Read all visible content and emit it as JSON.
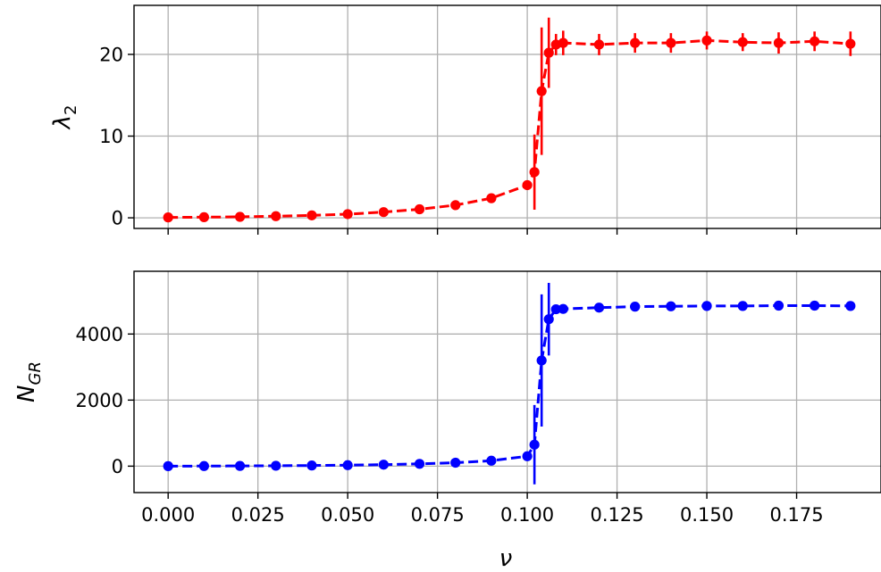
{
  "colors": {
    "top_series": "#ff0000",
    "bottom_series": "#0000ff",
    "grid": "#b0b0b0"
  },
  "chart_data": [
    {
      "type": "line",
      "title": "",
      "xlabel": "",
      "ylabel": "λ",
      "ylabel_sub": "2",
      "grid": true,
      "line_style": "dashed",
      "marker": "circle",
      "error_bars": true,
      "color": "#ff0000",
      "xlim": [
        -0.0095,
        0.1985
      ],
      "ylim": [
        -1.3,
        26.0
      ],
      "xticks": [
        0.0,
        0.025,
        0.05,
        0.075,
        0.1,
        0.125,
        0.15,
        0.175
      ],
      "xtick_labels": [],
      "yticks": [
        0,
        10,
        20
      ],
      "ytick_labels": [
        "0",
        "10",
        "20"
      ],
      "x": [
        0.0,
        0.01,
        0.02,
        0.03,
        0.04,
        0.05,
        0.06,
        0.07,
        0.08,
        0.09,
        0.1,
        0.102,
        0.104,
        0.106,
        0.108,
        0.11,
        0.12,
        0.13,
        0.14,
        0.15,
        0.16,
        0.17,
        0.18,
        0.19
      ],
      "y": [
        0.05,
        0.08,
        0.12,
        0.2,
        0.3,
        0.45,
        0.7,
        1.05,
        1.55,
        2.4,
        4.0,
        5.6,
        15.5,
        20.2,
        21.2,
        21.4,
        21.2,
        21.4,
        21.4,
        21.7,
        21.5,
        21.4,
        21.6,
        21.3
      ],
      "yerr": [
        0.05,
        0.05,
        0.05,
        0.05,
        0.08,
        0.1,
        0.1,
        0.15,
        0.2,
        0.3,
        0.6,
        4.6,
        7.8,
        4.3,
        1.3,
        1.5,
        1.3,
        1.2,
        1.2,
        1.1,
        1.1,
        1.3,
        1.2,
        1.5
      ]
    },
    {
      "type": "line",
      "title": "",
      "xlabel": "ν",
      "ylabel": "N",
      "ylabel_sub": "GR",
      "grid": true,
      "line_style": "dashed",
      "marker": "circle",
      "error_bars": true,
      "color": "#0000ff",
      "xlim": [
        -0.0095,
        0.1985
      ],
      "ylim": [
        -800,
        5900
      ],
      "xticks": [
        0.0,
        0.025,
        0.05,
        0.075,
        0.1,
        0.125,
        0.15,
        0.175
      ],
      "xtick_labels": [
        "0.000",
        "0.025",
        "0.050",
        "0.075",
        "0.100",
        "0.125",
        "0.150",
        "0.175"
      ],
      "yticks": [
        0,
        2000,
        4000
      ],
      "ytick_labels": [
        "0",
        "2000",
        "4000"
      ],
      "x": [
        0.0,
        0.01,
        0.02,
        0.03,
        0.04,
        0.05,
        0.06,
        0.07,
        0.08,
        0.09,
        0.1,
        0.102,
        0.104,
        0.106,
        0.108,
        0.11,
        0.12,
        0.13,
        0.14,
        0.15,
        0.16,
        0.17,
        0.18,
        0.19
      ],
      "y": [
        0,
        3,
        7,
        12,
        20,
        30,
        45,
        70,
        105,
        165,
        300,
        650,
        3200,
        4450,
        4750,
        4760,
        4800,
        4830,
        4840,
        4850,
        4850,
        4860,
        4860,
        4850
      ],
      "yerr": [
        2,
        3,
        4,
        5,
        8,
        10,
        15,
        20,
        30,
        40,
        60,
        1200,
        2000,
        1100,
        50,
        40,
        30,
        30,
        30,
        30,
        30,
        30,
        30,
        30
      ]
    }
  ]
}
